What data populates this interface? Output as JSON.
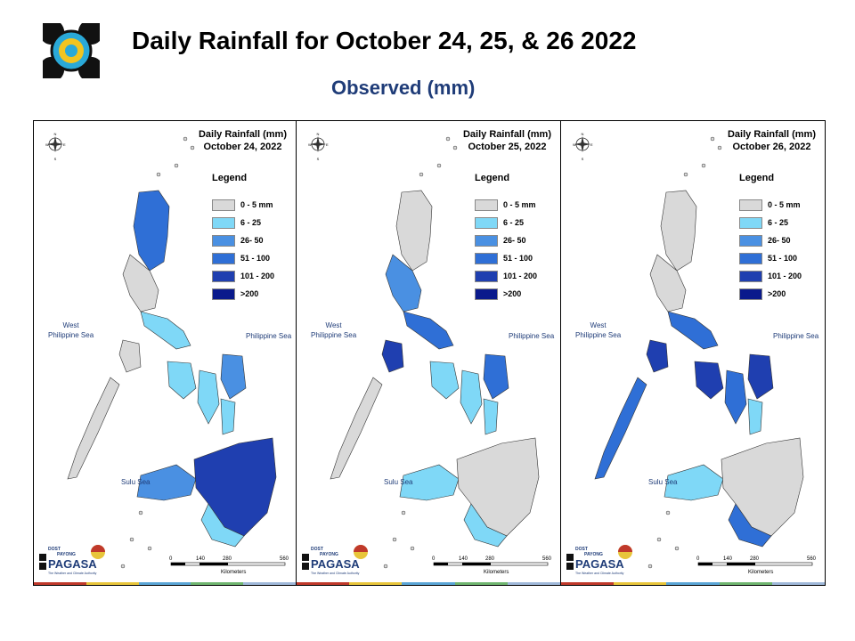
{
  "header": {
    "title": "Daily Rainfall for October 24, 25, & 26 2022",
    "subtitle": "Observed (mm)"
  },
  "legend": {
    "title": "Legend",
    "items": [
      {
        "label": "0 - 5 mm",
        "color": "#d9d9d9"
      },
      {
        "label": "6 - 25",
        "color": "#7fd8f7"
      },
      {
        "label": "26- 50",
        "color": "#4a90e2"
      },
      {
        "label": "51 - 100",
        "color": "#2f6fd6"
      },
      {
        "label": "101 - 200",
        "color": "#1f3fb0"
      },
      {
        "label": ">200",
        "color": "#0a1a8c"
      }
    ]
  },
  "panels": [
    {
      "title_line1": "Daily Rainfall (mm)",
      "title_line2": "October 24, 2022",
      "north": "blue",
      "central": "light",
      "south": "heavy"
    },
    {
      "title_line1": "Daily Rainfall (mm)",
      "title_line2": "October 25, 2022",
      "north": "gray",
      "central": "heavy",
      "south": "light"
    },
    {
      "title_line1": "Daily Rainfall (mm)",
      "title_line2": "October 26, 2022",
      "north": "gray",
      "central": "heavy",
      "south": "mixed"
    }
  ],
  "labels": {
    "west_sea_1": "West",
    "west_sea_2": "Philippine Sea",
    "east_sea": "Philippine Sea",
    "sulu": "Sulu Sea",
    "compass_n": "N",
    "compass_s": "S",
    "compass_e": "E",
    "compass_w": "W",
    "scale_ticks": [
      "0",
      "140",
      "280",
      "560"
    ],
    "scale_unit": "Kilometers",
    "agency_dost": "DOST",
    "agency_payong": "PAYONG",
    "agency_name": "PAGASA",
    "agency_tag": "The Weather and Climate Authority"
  },
  "stripe_colors": [
    "#c0392b",
    "#e8c53a",
    "#5aa5d6",
    "#6fb56f",
    "#9fb8d9"
  ]
}
